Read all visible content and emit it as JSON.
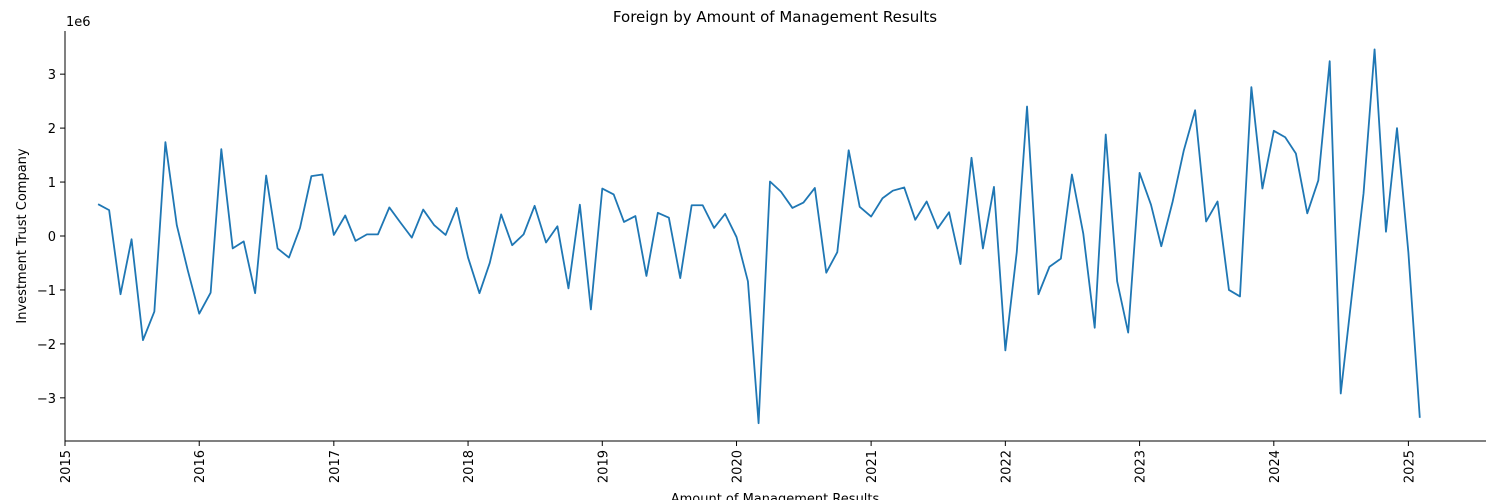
{
  "chart_data": {
    "type": "line",
    "title": "Foreign by Amount of Management Results",
    "xlabel": "Amount of Management Results",
    "ylabel": "Investment Trust Company",
    "y_offset_label": "1e6",
    "y_multiplier": 1000000,
    "xlim": [
      "2015-01-01",
      "2025-07-31"
    ],
    "ylim": [
      -3800000,
      3800000
    ],
    "x_tick_labels": [
      "2015",
      "2016",
      "2017",
      "2018",
      "2019",
      "2020",
      "2021",
      "2022",
      "2023",
      "2024",
      "2025"
    ],
    "x_tick_dates": [
      "2015-01-01",
      "2016-01-01",
      "2017-01-01",
      "2018-01-01",
      "2019-01-01",
      "2020-01-01",
      "2021-01-01",
      "2022-01-01",
      "2023-01-01",
      "2024-01-01",
      "2025-01-01"
    ],
    "y_ticks": [
      -3000000,
      -2000000,
      -1000000,
      0,
      1000000,
      2000000,
      3000000
    ],
    "y_tick_labels": [
      "−3",
      "−2",
      "−1",
      "0",
      "1",
      "2",
      "3"
    ],
    "grid": false,
    "legend": "none",
    "line_color": "#1f77b4",
    "series": [
      {
        "x": [
          "2015-04-01",
          "2015-05-01",
          "2015-06-01",
          "2015-07-01",
          "2015-08-01",
          "2015-09-01",
          "2015-10-01",
          "2015-11-01",
          "2015-12-01",
          "2016-01-01",
          "2016-02-01",
          "2016-03-01",
          "2016-04-01",
          "2016-05-01",
          "2016-06-01",
          "2016-07-01",
          "2016-08-01",
          "2016-09-01",
          "2016-10-01",
          "2016-11-01",
          "2016-12-01",
          "2017-01-01",
          "2017-02-01",
          "2017-03-01",
          "2017-04-01",
          "2017-05-01",
          "2017-06-01",
          "2017-07-01",
          "2017-08-01",
          "2017-09-01",
          "2017-10-01",
          "2017-11-01",
          "2017-12-01",
          "2018-01-01",
          "2018-02-01",
          "2018-03-01",
          "2018-04-01",
          "2018-05-01",
          "2018-06-01",
          "2018-07-01",
          "2018-08-01",
          "2018-09-01",
          "2018-10-01",
          "2018-11-01",
          "2018-12-01",
          "2019-01-01",
          "2019-02-01",
          "2019-03-01",
          "2019-04-01",
          "2019-05-01",
          "2019-06-01",
          "2019-07-01",
          "2019-08-01",
          "2019-09-01",
          "2019-10-01",
          "2019-11-01",
          "2019-12-01",
          "2020-01-01",
          "2020-02-01",
          "2020-03-01",
          "2020-04-01",
          "2020-05-01",
          "2020-06-01",
          "2020-07-01",
          "2020-08-01",
          "2020-09-01",
          "2020-10-01",
          "2020-11-01",
          "2020-12-01",
          "2021-01-01",
          "2021-02-01",
          "2021-03-01",
          "2021-04-01",
          "2021-05-01",
          "2021-06-01",
          "2021-07-01",
          "2021-08-01",
          "2021-09-01",
          "2021-10-01",
          "2021-11-01",
          "2021-12-01",
          "2022-01-01",
          "2022-02-01",
          "2022-03-01",
          "2022-04-01",
          "2022-05-01",
          "2022-06-01",
          "2022-07-01",
          "2022-08-01",
          "2022-09-01",
          "2022-10-01",
          "2022-11-01",
          "2022-12-01",
          "2023-01-01",
          "2023-02-01",
          "2023-03-01",
          "2023-04-01",
          "2023-05-01",
          "2023-06-01",
          "2023-07-01",
          "2023-08-01",
          "2023-09-01",
          "2023-10-01",
          "2023-11-01",
          "2023-12-01",
          "2024-01-01",
          "2024-02-01",
          "2024-03-01",
          "2024-04-01",
          "2024-05-01",
          "2024-06-01",
          "2024-07-01",
          "2024-08-01",
          "2024-09-01",
          "2024-10-01",
          "2024-11-01",
          "2024-12-01",
          "2025-01-01",
          "2025-02-01"
        ],
        "values": [
          590000,
          480000,
          -1080000,
          -60000,
          -1930000,
          -1400000,
          1740000,
          200000,
          -640000,
          -1440000,
          -1050000,
          1610000,
          -230000,
          -100000,
          -1060000,
          1120000,
          -230000,
          -400000,
          150000,
          1110000,
          1140000,
          20000,
          380000,
          -90000,
          30000,
          30000,
          530000,
          250000,
          -30000,
          490000,
          200000,
          20000,
          520000,
          -400000,
          -1060000,
          -500000,
          400000,
          -170000,
          30000,
          560000,
          -120000,
          180000,
          -970000,
          580000,
          -1360000,
          880000,
          770000,
          260000,
          370000,
          -740000,
          430000,
          340000,
          -780000,
          570000,
          570000,
          150000,
          410000,
          -20000,
          -840000,
          -3470000,
          1010000,
          820000,
          520000,
          620000,
          890000,
          -680000,
          -300000,
          1590000,
          540000,
          360000,
          700000,
          840000,
          900000,
          300000,
          640000,
          140000,
          440000,
          -520000,
          1450000,
          -230000,
          910000,
          -2120000,
          -300000,
          2400000,
          -1080000,
          -570000,
          -420000,
          1140000,
          40000,
          -1700000,
          1880000,
          -840000,
          -1790000,
          1170000,
          580000,
          -190000,
          640000,
          1580000,
          2330000,
          270000,
          640000,
          -1000000,
          -1120000,
          2760000,
          880000,
          1950000,
          1830000,
          1530000,
          420000,
          1030000,
          3240000,
          -2920000,
          -1050000,
          790000,
          3460000,
          80000,
          2000000,
          -310000,
          -3370000
        ]
      }
    ]
  }
}
